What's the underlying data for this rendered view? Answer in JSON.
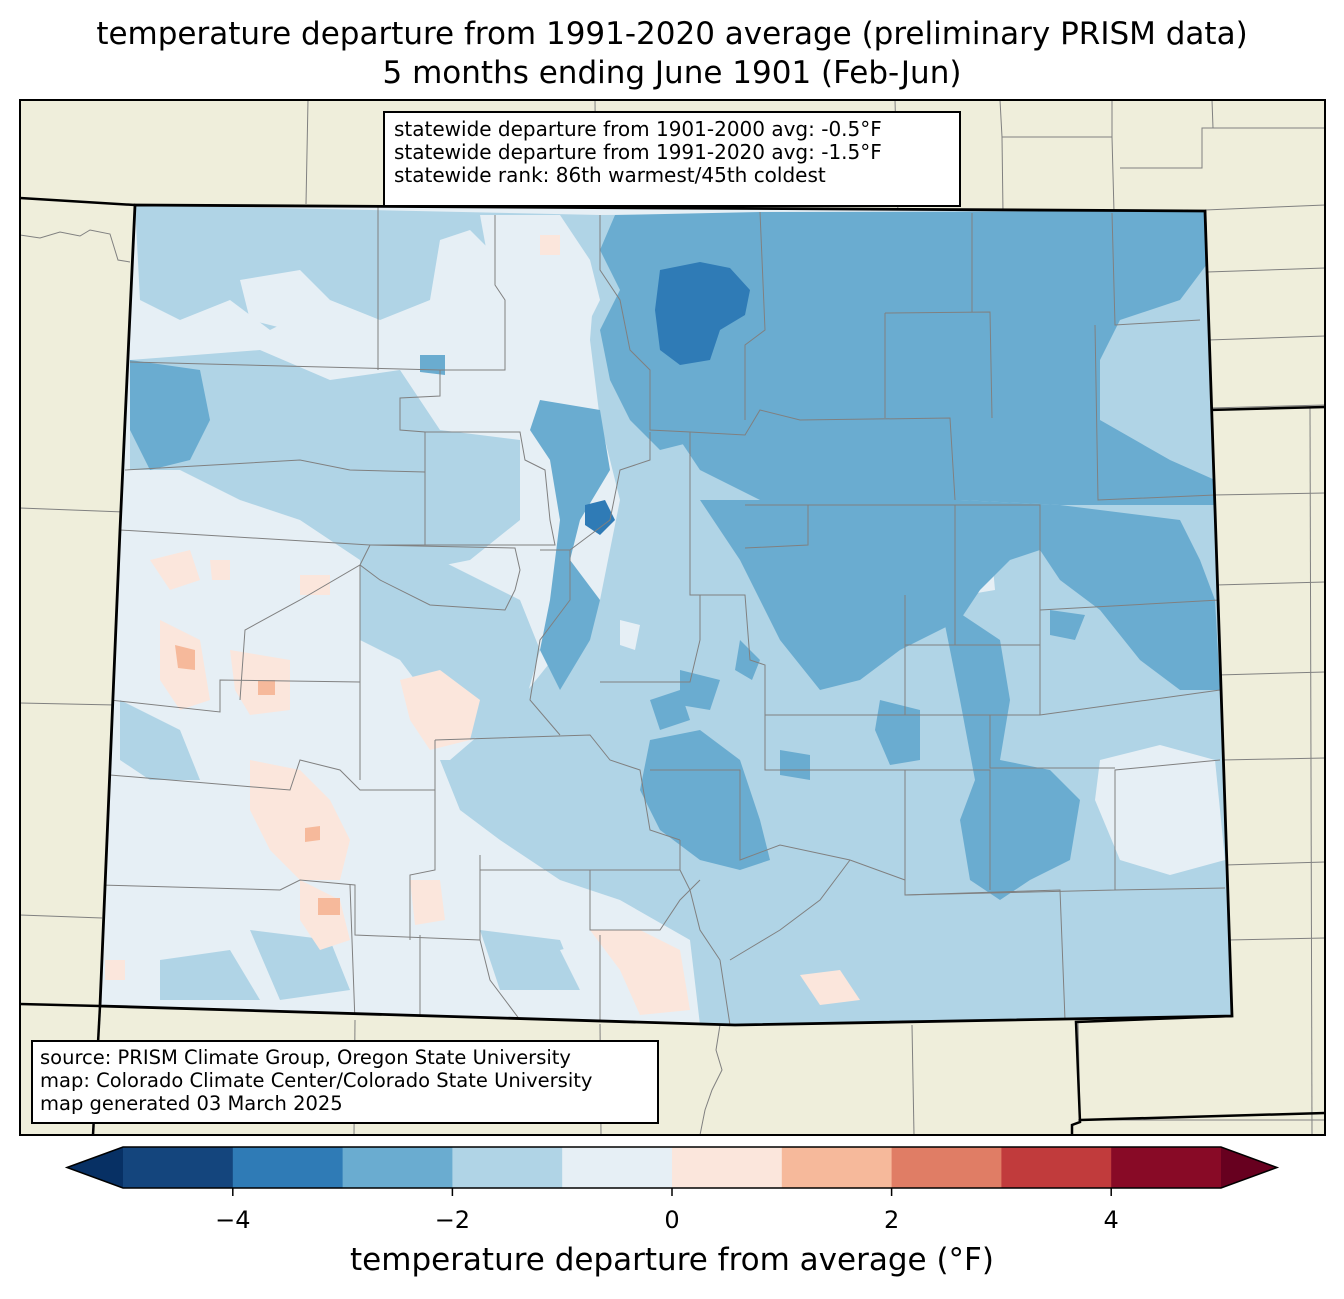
{
  "title": {
    "line1": "temperature departure from 1991-2020 average (preliminary PRISM data)",
    "line2": "5 months ending June 1901 (Feb-Jun)"
  },
  "stats": {
    "line1": "statewide departure from 1901-2000 avg: -0.5°F",
    "line2": "statewide departure from 1991-2020 avg: -1.5°F",
    "line3": "statewide rank: 86th warmest/45th coldest"
  },
  "source": {
    "line1": "source: PRISM Climate Group, Oregon State University",
    "line2": "map: Colorado Climate Center/Colorado State University",
    "line3": "map generated 03 March 2025"
  },
  "colorbar": {
    "label": "temperature departure from average (°F)",
    "ticks": [
      "−4",
      "−2",
      "0",
      "2",
      "4"
    ],
    "tick_values": [
      -4,
      -2,
      0,
      2,
      4
    ],
    "bounds": [
      -5,
      -4,
      -3,
      -2,
      -1,
      0,
      1,
      2,
      3,
      4,
      5
    ],
    "colors": [
      "#14457d",
      "#2f7bb6",
      "#6aacd0",
      "#b0d4e6",
      "#e6eff5",
      "#fbe6dc",
      "#f6b99b",
      "#e07d65",
      "#c13b3c",
      "#880a26"
    ],
    "under_color": "#073064",
    "over_color": "#67001f",
    "extend": "both"
  },
  "map": {
    "background_color": "#efeedb",
    "state_border_color": "#000000",
    "county_border_color": "#808080"
  }
}
